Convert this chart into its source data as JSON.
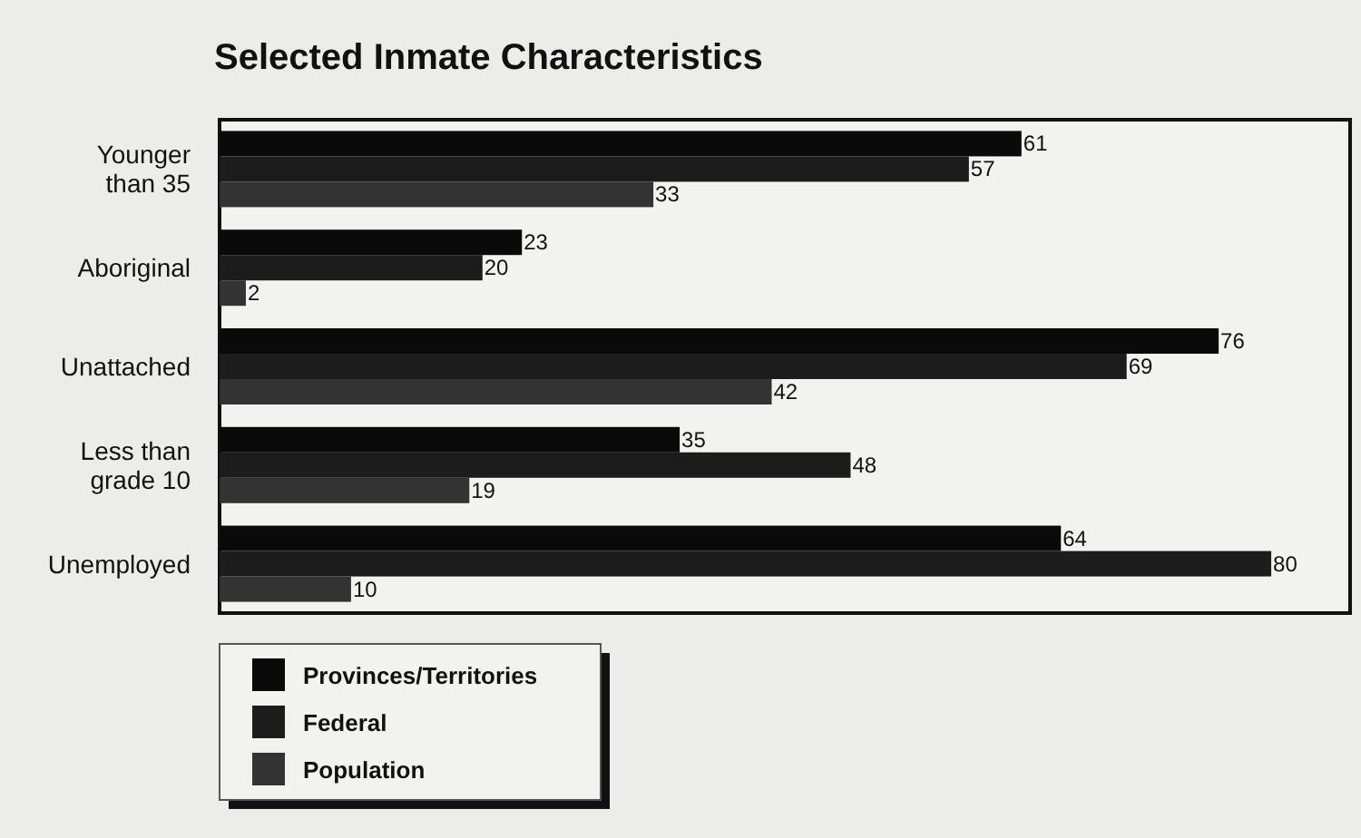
{
  "chart_data": {
    "type": "bar",
    "orientation": "horizontal",
    "title": "Selected Inmate Characteristics",
    "categories": [
      "Younger than 35",
      "Aboriginal",
      "Unattached",
      "Less than grade 10",
      "Unemployed"
    ],
    "series": [
      {
        "name": "Provinces/Territories",
        "color": "#0a0a0a",
        "values": [
          61,
          23,
          76,
          35,
          64
        ]
      },
      {
        "name": "Federal",
        "color": "#1c1c1c",
        "values": [
          57,
          20,
          69,
          48,
          80
        ]
      },
      {
        "name": "Population",
        "color": "#333333",
        "values": [
          33,
          2,
          42,
          19,
          10
        ]
      }
    ],
    "xlim": [
      0,
      86
    ],
    "data_labels": true,
    "legend": "bottom left"
  }
}
